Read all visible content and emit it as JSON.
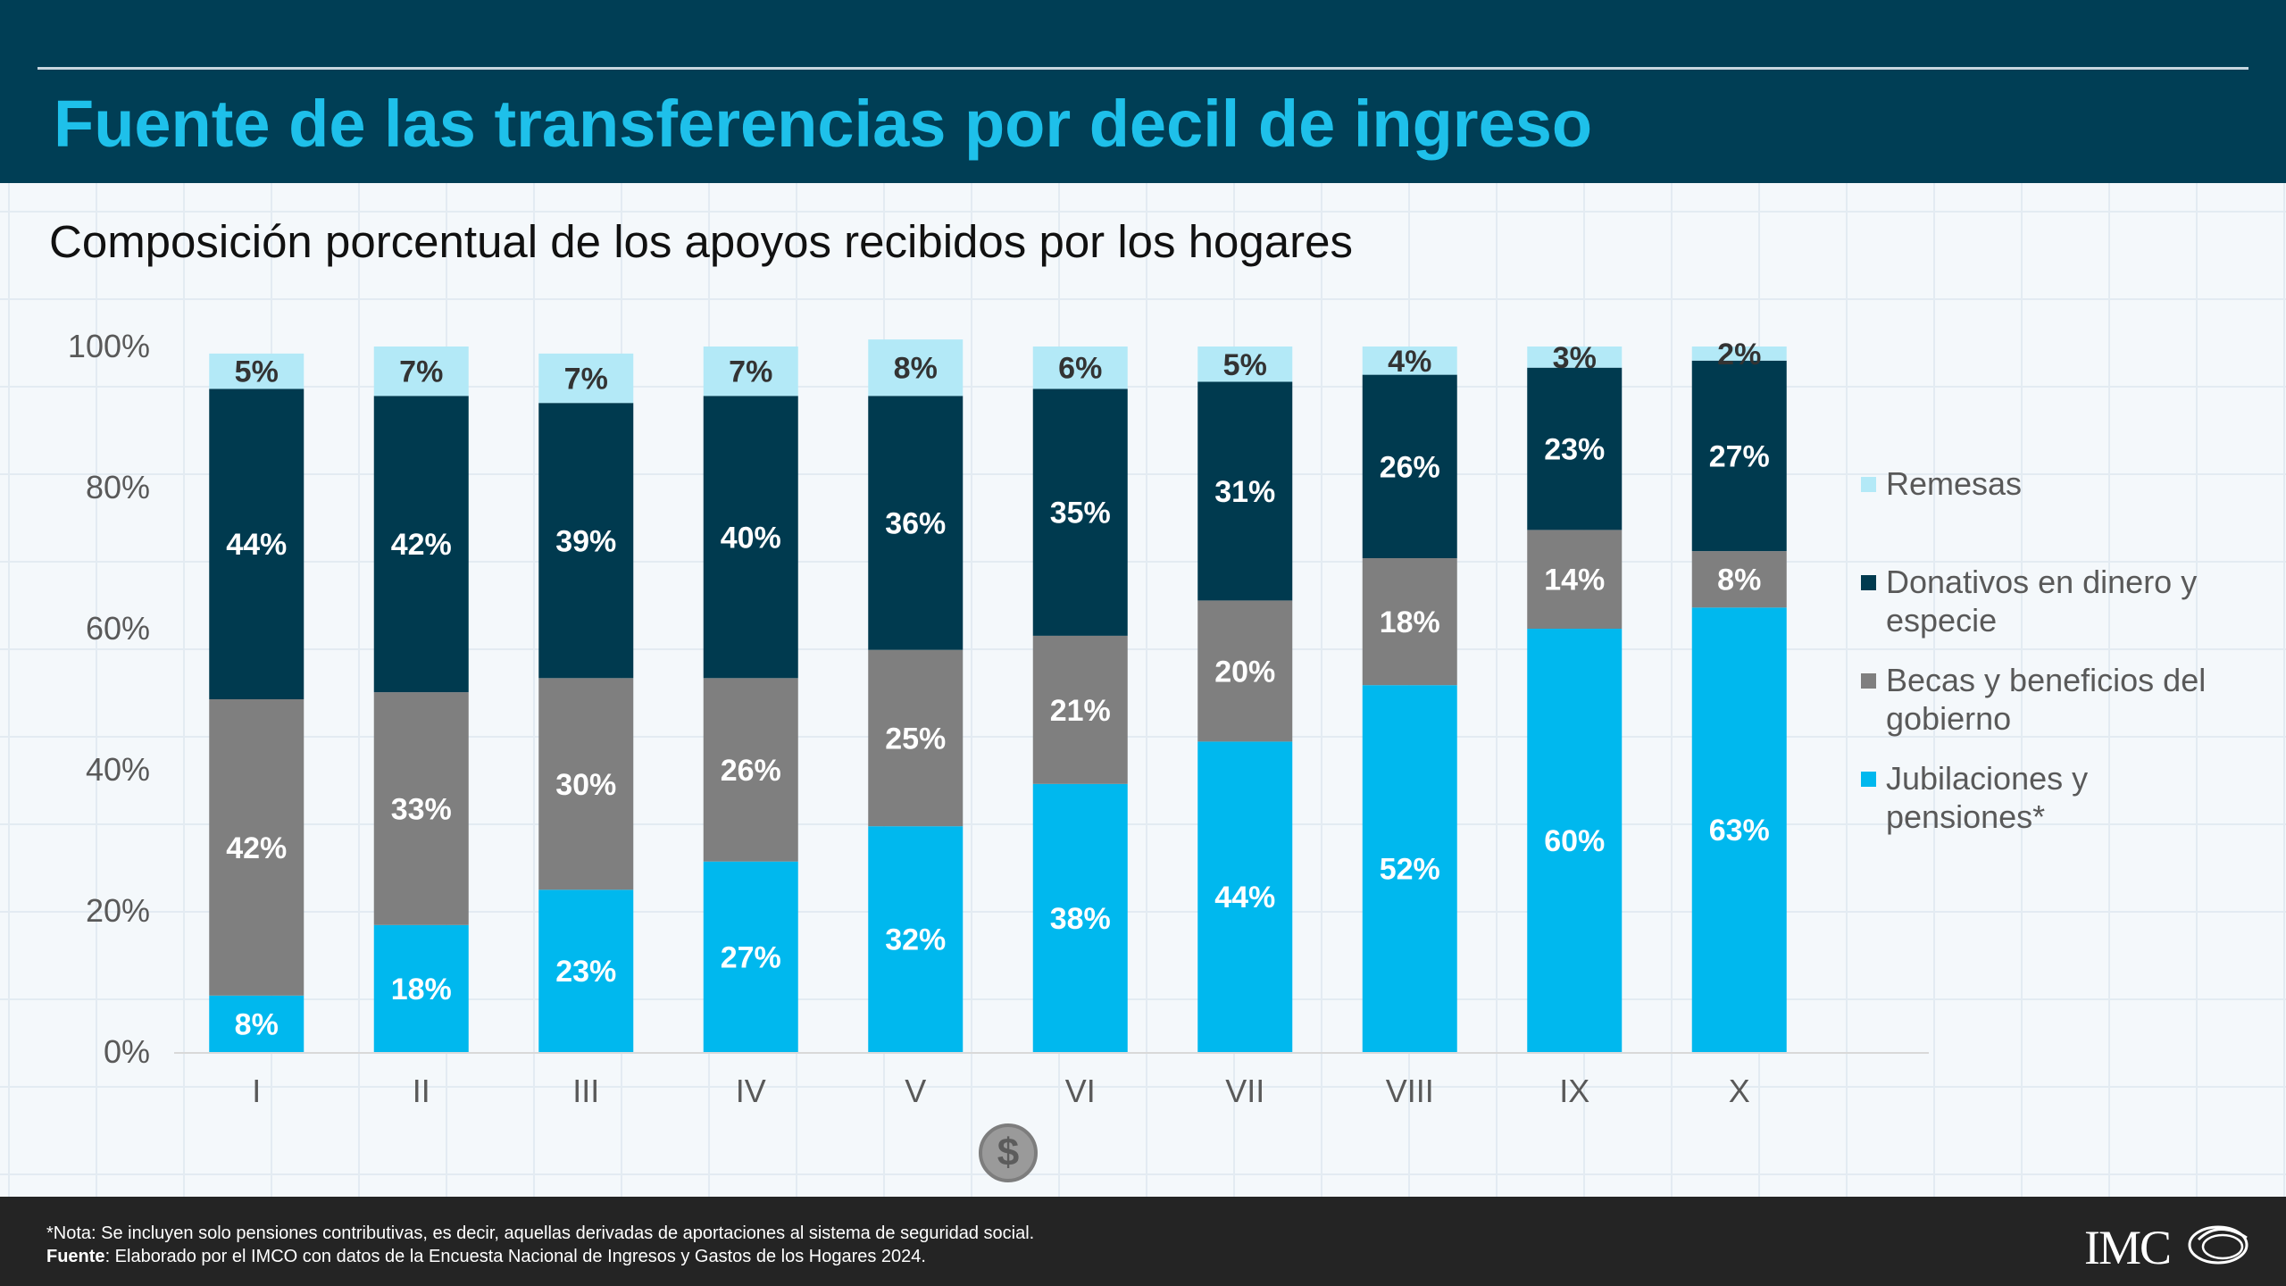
{
  "header": {
    "title": "Fuente de las transferencias por decil de ingreso"
  },
  "subtitle": "Composición porcentual de los apoyos recibidos por los hogares",
  "colors": {
    "header_bg": "#003e55",
    "title": "#1ec0ea",
    "jubilaciones": "#00b8ee",
    "becas": "#7f7f7f",
    "donativos": "#003a4f",
    "remesas": "#b3e9f7"
  },
  "chart_data": {
    "type": "bar",
    "stacked": true,
    "categories": [
      "I",
      "II",
      "III",
      "IV",
      "V",
      "VI",
      "VII",
      "VIII",
      "IX",
      "X"
    ],
    "y_ticks": [
      "0%",
      "20%",
      "40%",
      "60%",
      "80%",
      "100%"
    ],
    "ylim": [
      0,
      100
    ],
    "grid": false,
    "legend_position": "right",
    "series": [
      {
        "name": "Jubilaciones y pensiones*",
        "color": "#00b8ee",
        "label_color": "#ffffff",
        "values": [
          8,
          18,
          23,
          27,
          32,
          38,
          44,
          52,
          60,
          63
        ],
        "labels": [
          "8%",
          "18%",
          "23%",
          "27%",
          "32%",
          "38%",
          "44%",
          "52%",
          "60%",
          "63%"
        ]
      },
      {
        "name": "Becas y beneficios del gobierno",
        "color": "#7f7f7f",
        "label_color": "#ffffff",
        "values": [
          42,
          33,
          30,
          26,
          25,
          21,
          20,
          18,
          14,
          8
        ],
        "labels": [
          "42%",
          "33%",
          "30%",
          "26%",
          "25%",
          "21%",
          "20%",
          "18%",
          "14%",
          "8%"
        ]
      },
      {
        "name": "Donativos en dinero y especie",
        "color": "#003a4f",
        "label_color": "#ffffff",
        "values": [
          44,
          42,
          39,
          40,
          36,
          35,
          31,
          26,
          23,
          27
        ],
        "labels": [
          "44%",
          "42%",
          "39%",
          "40%",
          "36%",
          "35%",
          "31%",
          "26%",
          "23%",
          "27%"
        ]
      },
      {
        "name": "Remesas",
        "color": "#b3e9f7",
        "label_color": "#333333",
        "values": [
          5,
          7,
          7,
          7,
          8,
          6,
          5,
          4,
          3,
          2
        ],
        "labels": [
          "5%",
          "7%",
          "7%",
          "7%",
          "8%",
          "6%",
          "5%",
          "4%",
          "3%",
          "2%"
        ]
      }
    ],
    "legend_order": [
      3,
      2,
      1,
      0
    ]
  },
  "footer": {
    "note_text": "*Nota: Se incluyen solo pensiones contributivas, es decir, aquellas derivadas de aportaciones al sistema de seguridad social.",
    "source_label": "Fuente",
    "source_text": ": Elaborado por el IMCO con datos de la Encuesta Nacional de Ingresos y Gastos de los Hogares 2024.",
    "logo_text": "IMC"
  },
  "icons": {
    "coin": "dollar-coin-icon",
    "logo": "imco-logo"
  },
  "coin_glyph": "$"
}
